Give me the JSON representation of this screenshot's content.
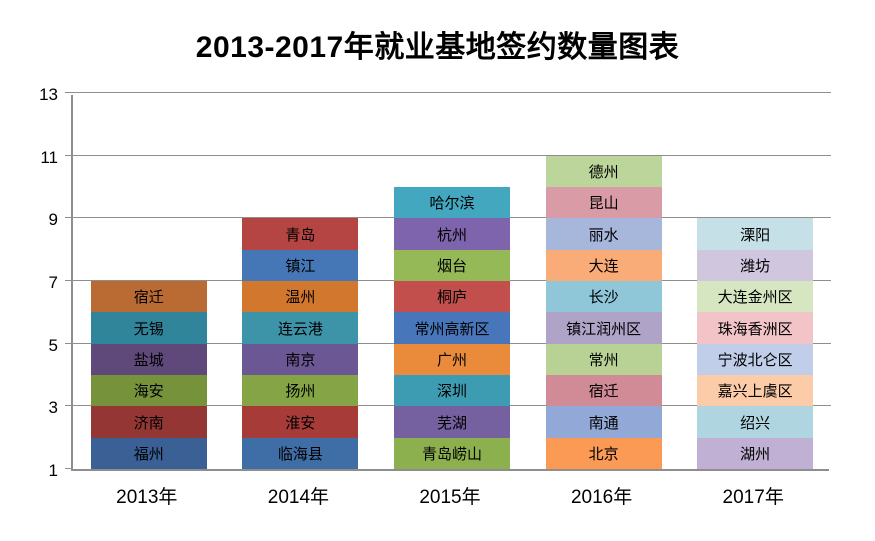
{
  "chart_data": {
    "type": "bar",
    "subtype": "stacked-unit-bar",
    "title": "2013-2017年就业基地签约数量图表",
    "xlabel": "",
    "ylabel": "",
    "ylim": [
      1,
      13
    ],
    "y_ticks": [
      1,
      3,
      5,
      7,
      9,
      11,
      13
    ],
    "gridlines": true,
    "legend": "none",
    "categories": [
      "2013年",
      "2014年",
      "2015年",
      "2016年",
      "2017年"
    ],
    "totals": [
      7,
      9,
      10,
      11,
      9
    ],
    "bars": [
      {
        "category": "2013年",
        "base": 1,
        "top": 7,
        "segments": [
          {
            "label": "福州",
            "value": 1,
            "color": "#3A6096"
          },
          {
            "label": "济南",
            "value": 1,
            "color": "#943634"
          },
          {
            "label": "海安",
            "value": 1,
            "color": "#76933C"
          },
          {
            "label": "盐城",
            "value": 1,
            "color": "#5F497A"
          },
          {
            "label": "无锡",
            "value": 1,
            "color": "#31859B"
          },
          {
            "label": "宿迁",
            "value": 1,
            "color": "#B96B33"
          }
        ]
      },
      {
        "category": "2014年",
        "base": 1,
        "top": 9,
        "segments": [
          {
            "label": "临海县",
            "value": 1,
            "color": "#3F6DA6"
          },
          {
            "label": "淮安",
            "value": 1,
            "color": "#A63B38"
          },
          {
            "label": "扬州",
            "value": 1,
            "color": "#84A445"
          },
          {
            "label": "南京",
            "value": 1,
            "color": "#6B5794"
          },
          {
            "label": "连云港",
            "value": 1,
            "color": "#3D94A8"
          },
          {
            "label": "温州",
            "value": 1,
            "color": "#D2772E"
          },
          {
            "label": "镇江",
            "value": 1,
            "color": "#4577B7"
          },
          {
            "label": "青岛",
            "value": 1,
            "color": "#B54542"
          }
        ]
      },
      {
        "category": "2015年",
        "base": 1,
        "top": 10,
        "segments": [
          {
            "label": "青岛崂山",
            "value": 1,
            "color": "#8DB04F"
          },
          {
            "label": "芜湖",
            "value": 1,
            "color": "#7560A0"
          },
          {
            "label": "深圳",
            "value": 1,
            "color": "#3D9CB2"
          },
          {
            "label": "广州",
            "value": 1,
            "color": "#E98B3A"
          },
          {
            "label": "常州高新区",
            "value": 1,
            "color": "#4876BA"
          },
          {
            "label": "桐庐",
            "value": 1,
            "color": "#C24F4C"
          },
          {
            "label": "烟台",
            "value": 1,
            "color": "#94B956"
          },
          {
            "label": "杭州",
            "value": 1,
            "color": "#7D64AC"
          },
          {
            "label": "哈尔滨",
            "value": 1,
            "color": "#43A7BF"
          }
        ]
      },
      {
        "category": "2016年",
        "base": 1,
        "top": 11,
        "segments": [
          {
            "label": "北京",
            "value": 1,
            "color": "#FA9A55"
          },
          {
            "label": "南通",
            "value": 1,
            "color": "#92A9D8"
          },
          {
            "label": "宿迁",
            "value": 1,
            "color": "#D08B96"
          },
          {
            "label": "常州",
            "value": 1,
            "color": "#B8D296"
          },
          {
            "label": "镇江润州区",
            "value": 1,
            "color": "#AFA3C8"
          },
          {
            "label": "长沙",
            "value": 1,
            "color": "#8FC6D8"
          },
          {
            "label": "大连",
            "value": 1,
            "color": "#F9AC77"
          },
          {
            "label": "丽水",
            "value": 1,
            "color": "#A7B7DB"
          },
          {
            "label": "昆山",
            "value": 1,
            "color": "#D99CA6"
          },
          {
            "label": "德州",
            "value": 1,
            "color": "#BCD59B"
          }
        ]
      },
      {
        "category": "2017年",
        "base": 1,
        "top": 9,
        "segments": [
          {
            "label": "湖州",
            "value": 1,
            "color": "#C0B1D4"
          },
          {
            "label": "绍兴",
            "value": 1,
            "color": "#AFD5E0"
          },
          {
            "label": "嘉兴上虞区",
            "value": 1,
            "color": "#FCCCA8"
          },
          {
            "label": "宁波北仑区",
            "value": 1,
            "color": "#C0CEE9"
          },
          {
            "label": "珠海香洲区",
            "value": 1,
            "color": "#F2C4C8"
          },
          {
            "label": "大连金州区",
            "value": 1,
            "color": "#D6E6C1"
          },
          {
            "label": "潍坊",
            "value": 1,
            "color": "#D0C7DF"
          },
          {
            "label": "溧阳",
            "value": 1,
            "color": "#C6E0E8"
          }
        ]
      }
    ],
    "colors_note": {
      "axis_line": "#8E8E8E",
      "gridline": "#8E8E8E",
      "text": "#000000",
      "background": "#FFFFFF"
    }
  }
}
